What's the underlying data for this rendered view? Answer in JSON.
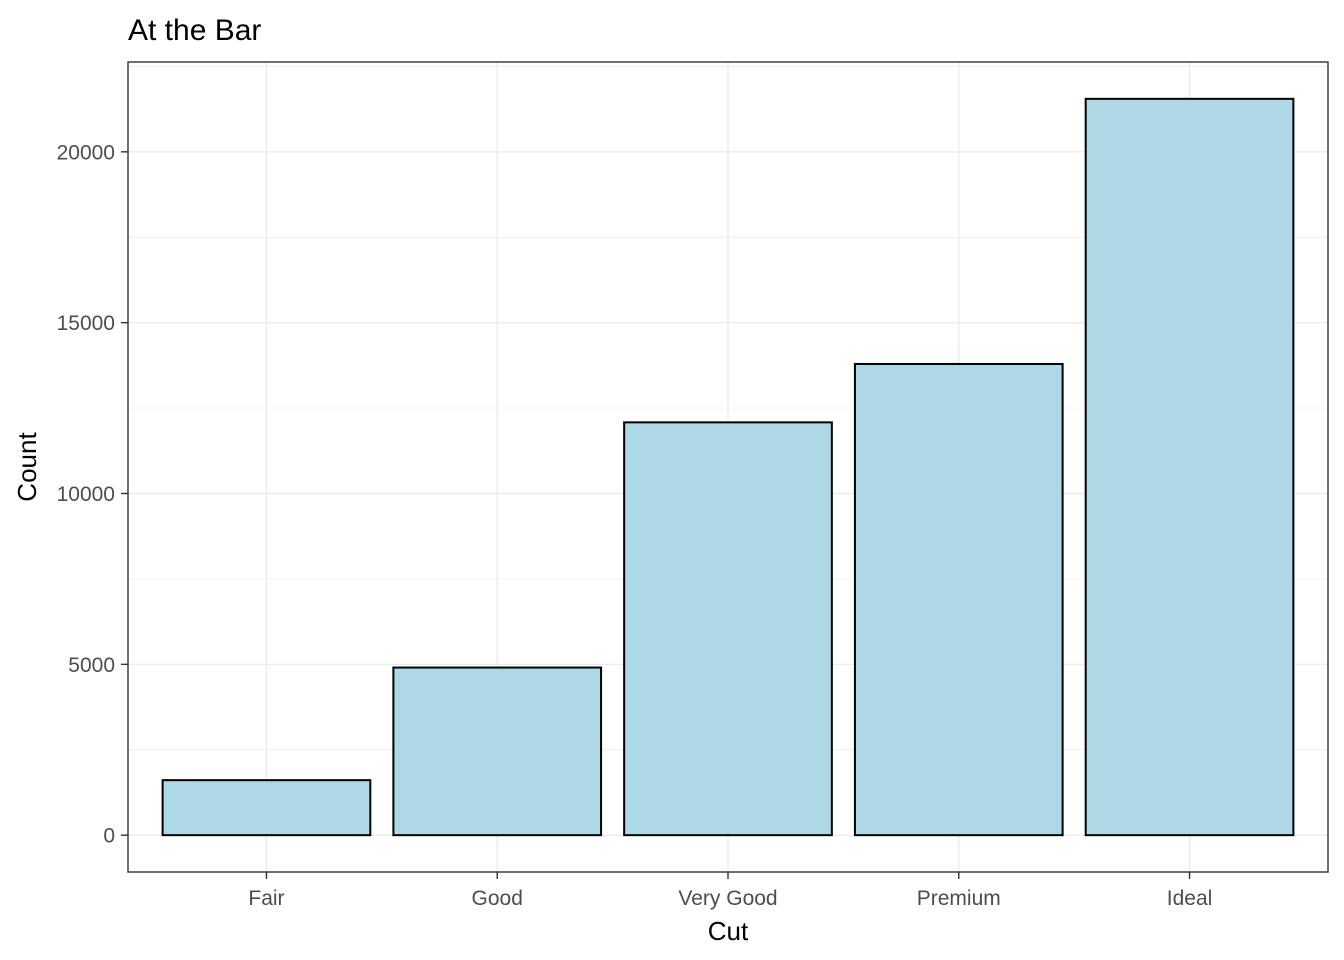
{
  "chart_data": {
    "type": "bar",
    "title": "At the Bar",
    "xlabel": "Cut",
    "ylabel": "Count",
    "categories": [
      "Fair",
      "Good",
      "Very Good",
      "Premium",
      "Ideal"
    ],
    "values": [
      1610,
      4906,
      12082,
      13791,
      21551
    ],
    "ylim": [
      -1078,
      22629
    ],
    "yticks": [
      0,
      5000,
      10000,
      15000,
      20000
    ],
    "ytick_labels": [
      "0",
      "5000",
      "10000",
      "15000",
      "20000"
    ],
    "grid": true,
    "legend": "none",
    "colors": {
      "bar_fill": "#add8e6",
      "bar_outline": "#000000"
    }
  }
}
